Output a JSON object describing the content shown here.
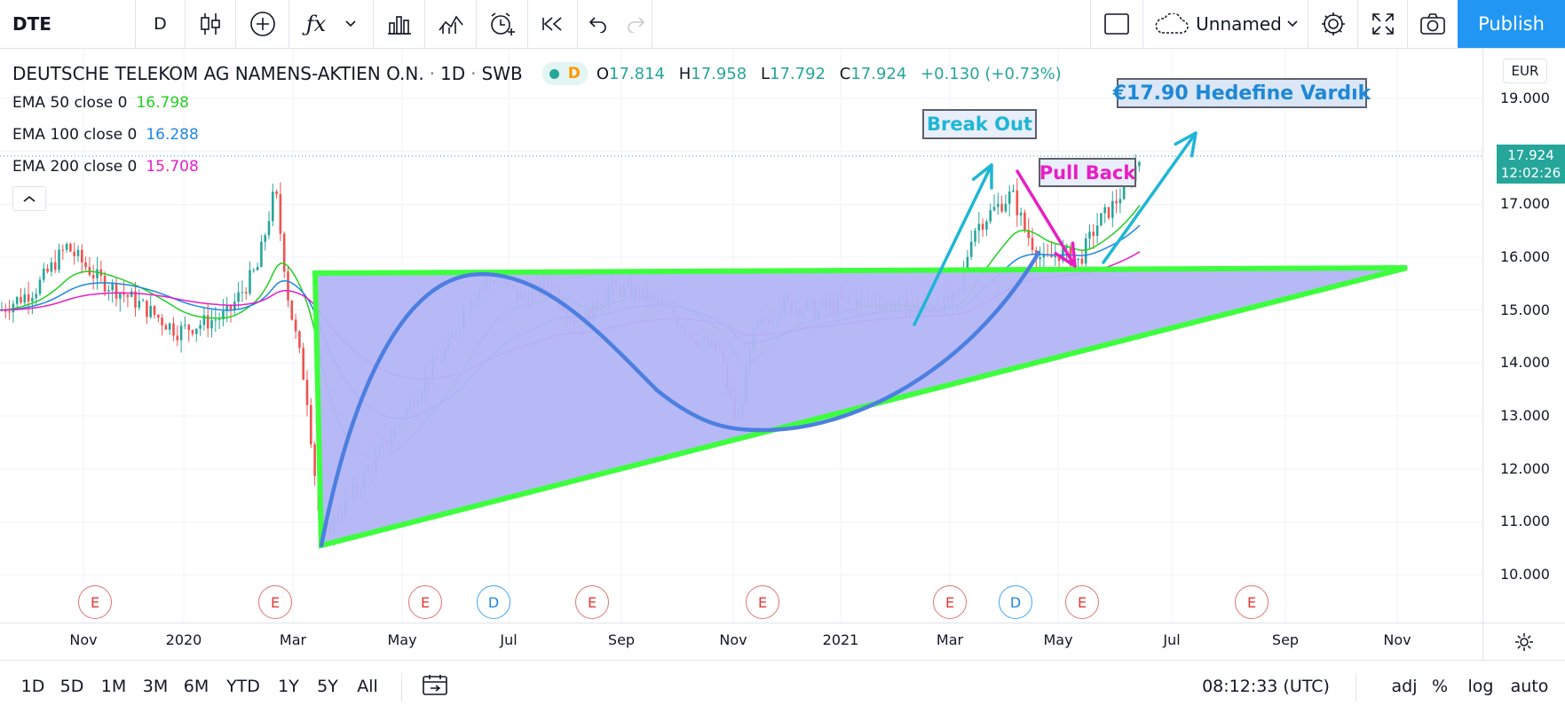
{
  "toolbar": {
    "symbol": "DTE",
    "interval": "D",
    "layout_name": "Unnamed",
    "publish_label": "Publish",
    "icons": [
      "candles-icon",
      "add-indicator-icon",
      "fx-icon",
      "chevron-down-icon",
      "bar-chart-icon",
      "compare-icon",
      "alert-icon",
      "replay-icon",
      "undo-icon",
      "redo-icon",
      "select-box-icon",
      "cloud-icon",
      "settings-icon",
      "fullscreen-icon",
      "camera-icon"
    ]
  },
  "legend": {
    "title": "DEUTSCHE TELEKOM AG NAMENS-AKTIEN O.N.",
    "timeframe": "1D",
    "exchange": "SWB",
    "data_flag": "D",
    "open_label": "O",
    "open": "17.814",
    "high_label": "H",
    "high": "17.958",
    "low_label": "L",
    "low": "17.792",
    "close_label": "C",
    "close": "17.924",
    "change": "+0.130 (+0.73%)"
  },
  "indicators": [
    {
      "label": "EMA 50 close 0",
      "value": "16.798",
      "color": "#22d022"
    },
    {
      "label": "EMA 100 close 0",
      "value": "16.288",
      "color": "#1e88e5"
    },
    {
      "label": "EMA 200 close 0",
      "value": "15.708",
      "color": "#e91ec4"
    }
  ],
  "price_axis": {
    "currency": "EUR",
    "ticks": [
      "19.000",
      "18.000",
      "17.000",
      "16.000",
      "15.000",
      "14.000",
      "13.000",
      "12.000",
      "11.000",
      "10.000"
    ],
    "current_price": "17.924",
    "countdown": "12:02:26"
  },
  "time_axis": {
    "ticks": [
      "Nov",
      "2020",
      "Mar",
      "May",
      "Jul",
      "Sep",
      "Nov",
      "2021",
      "Mar",
      "May",
      "Jul",
      "Sep",
      "Nov"
    ]
  },
  "events": [
    "E",
    "E",
    "E",
    "D",
    "E",
    "E",
    "E",
    "D",
    "E",
    "E"
  ],
  "annotations": {
    "break_out": "Break Out",
    "pull_back": "Pull Back",
    "target": "€17.90 Hedefine Vardık"
  },
  "bottombar": {
    "ranges": [
      "1D",
      "5D",
      "1M",
      "3M",
      "6M",
      "YTD",
      "1Y",
      "5Y",
      "All"
    ],
    "time": "08:12:33 (UTC)",
    "options": [
      "adj",
      "%",
      "log",
      "auto"
    ]
  },
  "colors": {
    "up": "#26a69a",
    "down": "#ef5350",
    "triangle": "#3dff3d",
    "triangle_fill": "#b3b5f7",
    "curve": "#4c7fe0",
    "accent": "#2196f3"
  },
  "chart_data": {
    "type": "candlestick",
    "title": "DEUTSCHE TELEKOM AG NAMENS-AKTIEN O.N.",
    "ylim": [
      9.3,
      19.9
    ],
    "x_categories": [
      "Nov",
      "2020",
      "Mar",
      "May",
      "Jul",
      "Sep",
      "Nov",
      "2021",
      "Mar",
      "May",
      "Jul",
      "Sep",
      "Nov"
    ],
    "series": [
      {
        "name": "EMA 50 close 0",
        "last": 16.798
      },
      {
        "name": "EMA 100 close 0",
        "last": 16.288
      },
      {
        "name": "EMA 200 close 0",
        "last": 15.708
      }
    ],
    "last_close": 17.924
  }
}
